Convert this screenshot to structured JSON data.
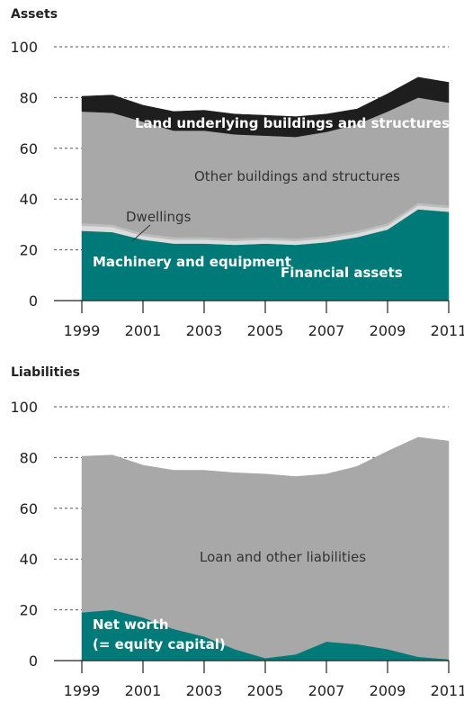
{
  "chart_data": [
    {
      "type": "area",
      "title": "Assets",
      "x": [
        1999,
        2000,
        2001,
        2002,
        2003,
        2004,
        2005,
        2006,
        2007,
        2008,
        2009,
        2010,
        2011
      ],
      "xticks": [
        "1999",
        "2001",
        "2003",
        "2005",
        "2007",
        "2009",
        "2011"
      ],
      "yticks": [
        "0",
        "20",
        "40",
        "60",
        "80",
        "100"
      ],
      "ylim": [
        0,
        100
      ],
      "stacked": true,
      "grid": true,
      "series": [
        {
          "name": "Financial assets",
          "color": "#007a78",
          "values": [
            27.5,
            27,
            24,
            22.5,
            22.5,
            22,
            22.5,
            22,
            23,
            25,
            28,
            36,
            35
          ]
        },
        {
          "name": "Machinery and equipment",
          "color": "#dcdcdc",
          "values": [
            2,
            2,
            1.5,
            1.5,
            1.5,
            1.5,
            1.5,
            1.5,
            1.5,
            1.5,
            1.5,
            1.5,
            1.5
          ]
        },
        {
          "name": "Dwellings",
          "color": "#bdbdbd",
          "values": [
            1,
            1,
            1,
            1,
            1,
            1,
            1,
            1,
            1,
            1,
            1,
            1,
            1
          ]
        },
        {
          "name": "Other buildings and structures",
          "color": "#a8a8a8",
          "values": [
            44,
            44,
            44,
            42,
            42,
            41,
            40,
            40,
            41,
            42,
            44,
            41.5,
            40.5
          ]
        },
        {
          "name": "Land underlying buildings and structures",
          "color": "#1e1e1e",
          "values": [
            6,
            7,
            6.5,
            7.5,
            8,
            8,
            8,
            8,
            7,
            6,
            7,
            8,
            8
          ]
        }
      ],
      "annotations": [
        {
          "text": "Land underlying buildings and structures",
          "series": "Land underlying buildings and structures"
        },
        {
          "text": "Other buildings and structures",
          "series": "Other buildings and structures"
        },
        {
          "text": "Dwellings",
          "series": "Dwellings"
        },
        {
          "text": "Machinery and equipment",
          "series": "Machinery and equipment"
        },
        {
          "text": "Financial assets",
          "series": "Financial assets"
        }
      ]
    },
    {
      "type": "area",
      "title": "Liabilities",
      "x": [
        1999,
        2000,
        2001,
        2002,
        2003,
        2004,
        2005,
        2006,
        2007,
        2008,
        2009,
        2010,
        2011
      ],
      "xticks": [
        "1999",
        "2001",
        "2003",
        "2005",
        "2007",
        "2009",
        "2011"
      ],
      "yticks": [
        "0",
        "20",
        "40",
        "60",
        "80",
        "100"
      ],
      "ylim": [
        0,
        100
      ],
      "stacked": true,
      "grid": true,
      "series": [
        {
          "name": "Net worth (= equity capital)",
          "color": "#007a78",
          "values": [
            19,
            20,
            17,
            12.5,
            9.5,
            4.5,
            1,
            2.5,
            7.5,
            6.5,
            4.5,
            1.5,
            0.5
          ]
        },
        {
          "name": "Loan and other liabilities",
          "color": "#a8a8a8",
          "values": [
            61.5,
            61,
            60,
            62.5,
            65.5,
            69.5,
            72.5,
            70,
            66,
            70,
            78,
            86.5,
            86
          ]
        }
      ],
      "annotations": [
        {
          "text": "Loan and other liabilities",
          "series": "Loan and other liabilities"
        },
        {
          "text": "Net worth",
          "series": "Net worth (= equity capital)"
        },
        {
          "text": "(= equity capital)",
          "series": "Net worth (= equity capital)"
        }
      ]
    }
  ]
}
